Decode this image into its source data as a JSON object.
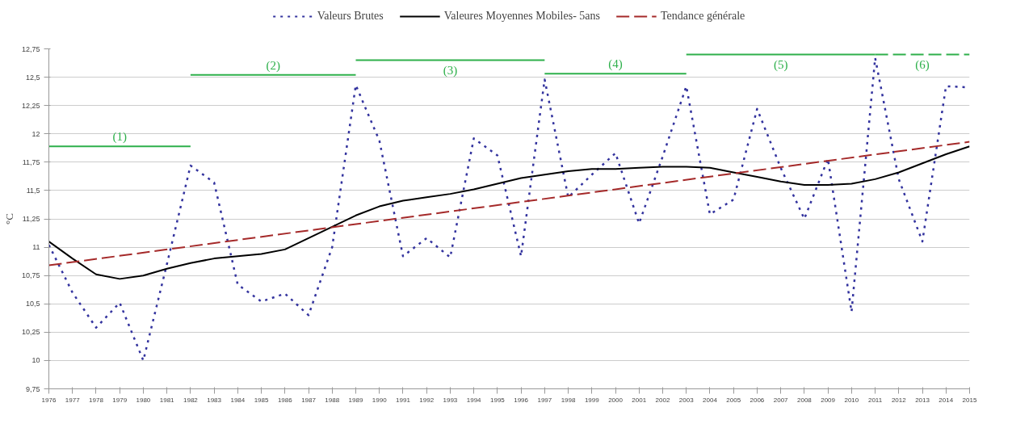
{
  "chart_data": {
    "type": "line",
    "ylabel": "°C",
    "x": [
      1976,
      1977,
      1978,
      1979,
      1980,
      1981,
      1982,
      1983,
      1984,
      1985,
      1986,
      1987,
      1988,
      1989,
      1990,
      1991,
      1992,
      1993,
      1994,
      1995,
      1996,
      1997,
      1998,
      1999,
      2000,
      2001,
      2002,
      2003,
      2004,
      2005,
      2006,
      2007,
      2008,
      2009,
      2010,
      2011,
      2012,
      2013,
      2014,
      2015
    ],
    "series": [
      {
        "name": "Valeurs Brutes",
        "color": "#33339e",
        "line_style": "dotted",
        "values": [
          11.02,
          10.6,
          10.29,
          10.51,
          10.0,
          10.85,
          11.72,
          11.57,
          10.67,
          10.52,
          10.59,
          10.4,
          11.0,
          12.43,
          11.94,
          10.92,
          11.08,
          10.91,
          11.96,
          11.81,
          10.92,
          12.48,
          11.44,
          11.64,
          11.83,
          11.21,
          11.8,
          12.42,
          11.29,
          11.42,
          12.22,
          11.7,
          11.25,
          11.78,
          10.43,
          12.67,
          11.6,
          11.05,
          12.42,
          12.41
        ]
      },
      {
        "name": "Valeures Moyennes Mobiles- 5ans",
        "color": "#000000",
        "line_style": "solid",
        "values": [
          11.05,
          10.9,
          10.76,
          10.72,
          10.75,
          10.81,
          10.86,
          10.9,
          10.92,
          10.94,
          10.98,
          11.08,
          11.18,
          11.28,
          11.36,
          11.41,
          11.44,
          11.47,
          11.51,
          11.56,
          11.61,
          11.64,
          11.67,
          11.69,
          11.69,
          11.7,
          11.71,
          11.71,
          11.7,
          11.66,
          11.62,
          11.58,
          11.55,
          11.55,
          11.56,
          11.6,
          11.66,
          11.74,
          11.82,
          11.89
        ]
      },
      {
        "name": "Tendance générale",
        "color": "#a52a2a",
        "line_style": "dashed",
        "x": [
          1976,
          2015
        ],
        "values": [
          10.84,
          11.93
        ]
      },
      {
        "color": "#2eb04b",
        "line_style": "solid",
        "x": [
          1976,
          1982
        ],
        "values": [
          11.89,
          11.89
        ]
      },
      {
        "color": "#2eb04b",
        "line_style": "solid",
        "x": [
          1982,
          1989
        ],
        "values": [
          12.52,
          12.52
        ]
      },
      {
        "color": "#2eb04b",
        "line_style": "solid",
        "x": [
          1989,
          1997
        ],
        "values": [
          12.65,
          12.65
        ]
      },
      {
        "color": "#2eb04b",
        "line_style": "solid",
        "x": [
          1997,
          2003
        ],
        "values": [
          12.53,
          12.53
        ]
      },
      {
        "color": "#2eb04b",
        "line_style": "solid",
        "x": [
          2003,
          2011
        ],
        "values": [
          12.7,
          12.7
        ]
      },
      {
        "color": "#2eb04b",
        "line_style": "dashed",
        "x": [
          2011,
          2015
        ],
        "values": [
          12.7,
          12.7
        ]
      }
    ],
    "annotations": [
      "(1)",
      "(2)",
      "(3)",
      "(4)",
      "(5)",
      "(6)"
    ],
    "xlim": [
      1976,
      2015
    ],
    "xticks": [
      1976,
      1977,
      1978,
      1979,
      1980,
      1981,
      1982,
      1983,
      1984,
      1985,
      1986,
      1987,
      1988,
      1989,
      1990,
      1991,
      1992,
      1993,
      1994,
      1995,
      1996,
      1997,
      1998,
      1999,
      2000,
      2001,
      2002,
      2003,
      2004,
      2005,
      2006,
      2007,
      2008,
      2009,
      2010,
      2011,
      2012,
      2013,
      2014,
      2015
    ],
    "ylim": [
      9.75,
      12.75
    ],
    "yticks": [
      {
        "value": 9.75,
        "label": "9,75"
      },
      {
        "value": 10,
        "label": "10"
      },
      {
        "value": 10.25,
        "label": "10,25"
      },
      {
        "value": 10.5,
        "label": "10,5"
      },
      {
        "value": 10.75,
        "label": "10,75"
      },
      {
        "value": 11,
        "label": "11"
      },
      {
        "value": 11.25,
        "label": "11,25"
      },
      {
        "value": 11.5,
        "label": "11,5"
      },
      {
        "value": 11.75,
        "label": "11,75"
      },
      {
        "value": 12,
        "label": "12"
      },
      {
        "value": 12.25,
        "label": "12,25"
      },
      {
        "value": 12.5,
        "label": "12,5"
      },
      {
        "value": 12.75,
        "label": "12,75"
      }
    ],
    "grid": "y",
    "legend": "top",
    "marker": "none"
  }
}
